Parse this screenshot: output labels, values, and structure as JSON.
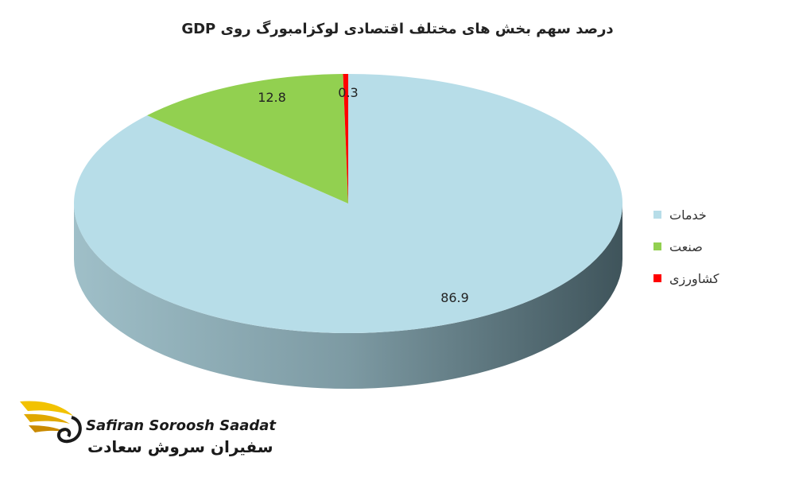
{
  "chart_data": {
    "type": "pie",
    "title": "درصد سهم بخش های مختلف اقتصادی لوکزامبورگ روی GDP",
    "slices": [
      {
        "label": "خدمات",
        "value": 86.9,
        "color": "#b7dde8"
      },
      {
        "label": "صنعت",
        "value": 12.8,
        "color": "#92d050"
      },
      {
        "label": "کشاورزی",
        "value": 0.3,
        "color": "#ff0000"
      }
    ],
    "data_labels": [
      "86.9",
      "12.8",
      "0.3"
    ],
    "legend_position": "right",
    "style": "3d"
  },
  "logo": {
    "latin": "Safiran Soroosh Saadat",
    "persian": "سفیران سروش سعادت"
  }
}
